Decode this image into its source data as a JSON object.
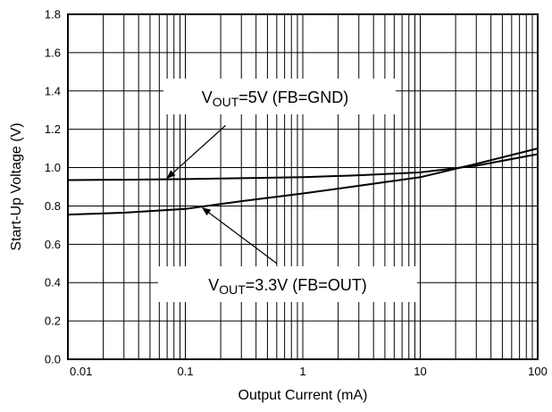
{
  "chart_data": {
    "type": "line",
    "xlabel": "Output Current (mA)",
    "ylabel": "Start-Up Voltage (V)",
    "xscale": "log",
    "xlim": [
      0.01,
      100
    ],
    "ylim": [
      0.0,
      1.8
    ],
    "grid": true,
    "x_ticks": [
      "0.01",
      "0.1",
      "1",
      "10",
      "100"
    ],
    "y_ticks": [
      "0.0",
      "0.2",
      "0.4",
      "0.6",
      "0.8",
      "1.0",
      "1.2",
      "1.4",
      "1.6",
      "1.8"
    ],
    "series": [
      {
        "x": [
          0.01,
          0.03,
          0.1,
          0.3,
          1,
          3,
          10,
          30,
          100
        ],
        "y": [
          0.935,
          0.937,
          0.94,
          0.945,
          0.95,
          0.96,
          0.975,
          1.01,
          1.07
        ]
      },
      {
        "x": [
          0.01,
          0.03,
          0.1,
          0.3,
          1,
          3,
          10,
          30,
          100
        ],
        "y": [
          0.755,
          0.765,
          0.785,
          0.825,
          0.865,
          0.905,
          0.95,
          1.02,
          1.1
        ]
      }
    ],
    "annotations": [
      {
        "id": "vout5",
        "text_main": "V",
        "text_sub": "OUT",
        "text_rest": "=5V (FB=GND)",
        "arrow_from": [
          0.22,
          1.22
        ],
        "arrow_to": [
          0.07,
          0.945
        ]
      },
      {
        "id": "vout33",
        "text_main": "V",
        "text_sub": "OUT",
        "text_rest": "=3.3V (FB=OUT)",
        "arrow_from": [
          0.6,
          0.5
        ],
        "arrow_to": [
          0.14,
          0.79
        ]
      }
    ]
  }
}
